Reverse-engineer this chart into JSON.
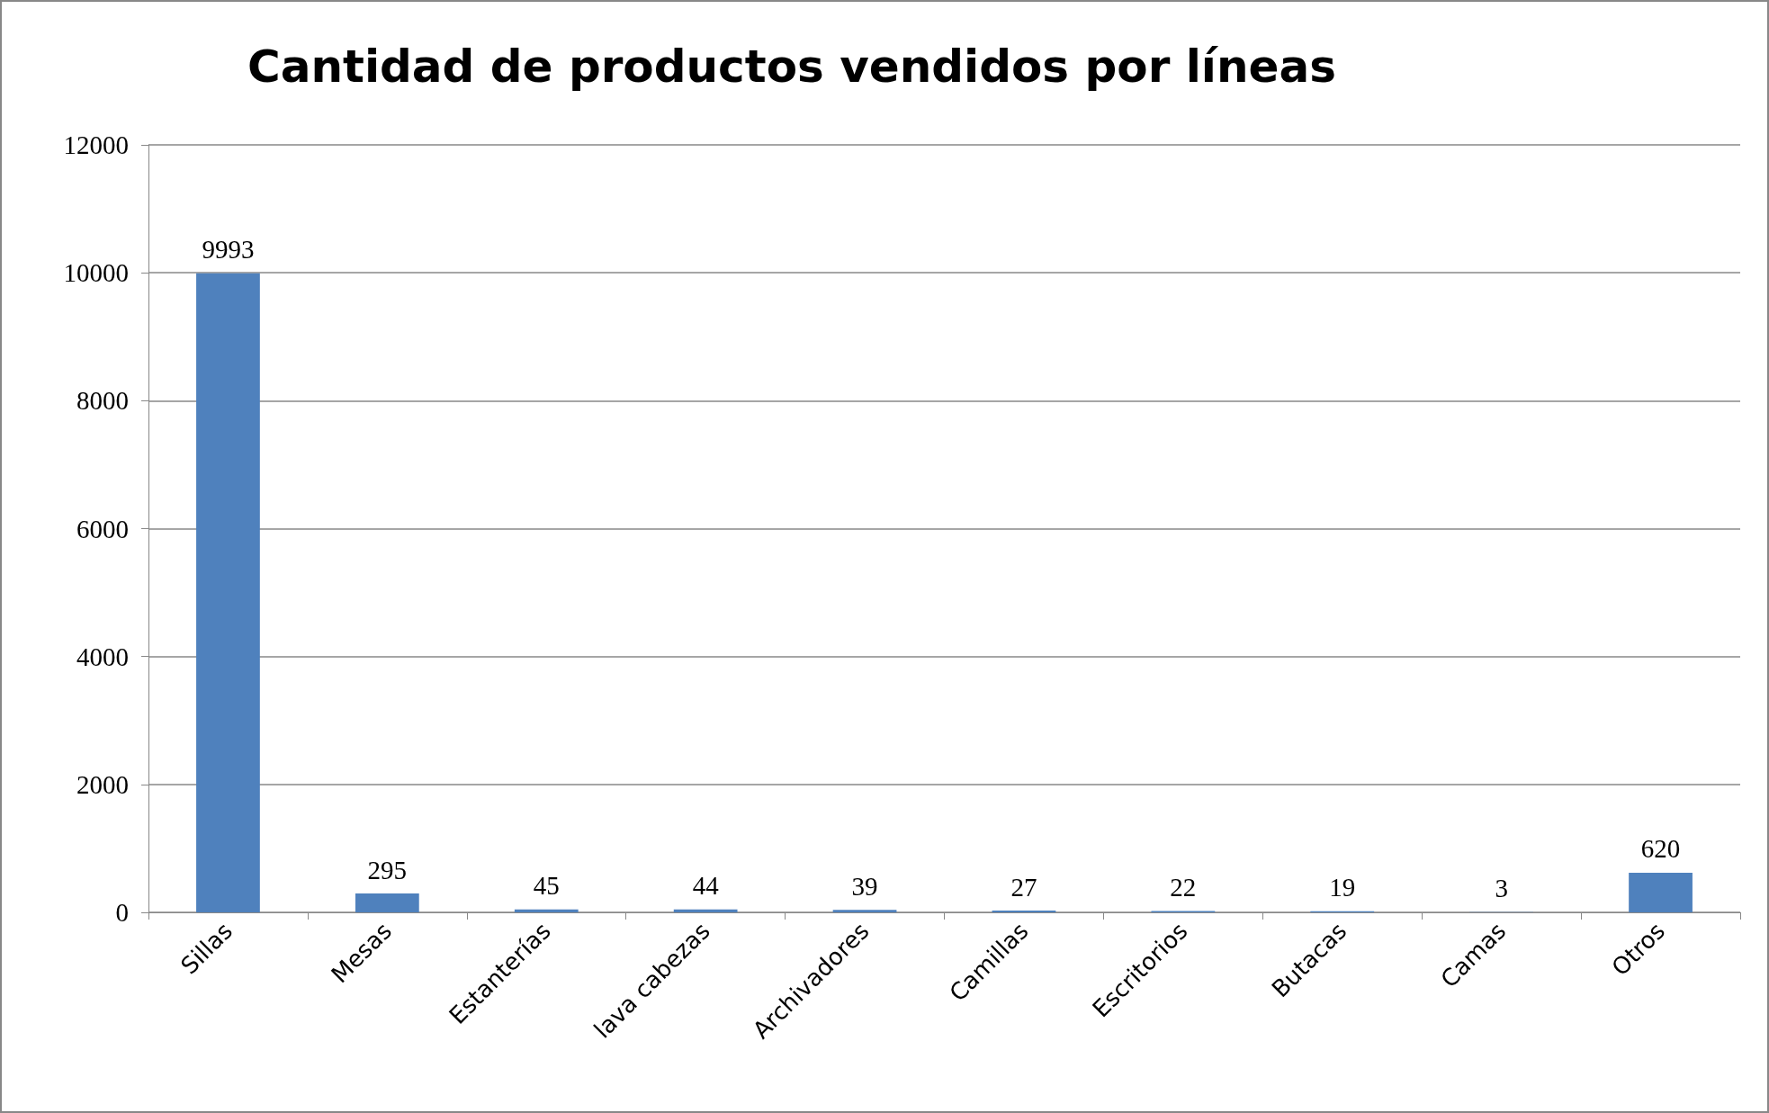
{
  "chart_data": {
    "type": "bar",
    "title": "Cantidad de productos vendidos por líneas",
    "categories": [
      "Sillas",
      "Mesas",
      "Estanterías",
      "lava cabezas",
      "Archivadores",
      "Camillas",
      "Escritorios",
      "Butacas",
      "Camas",
      "Otros"
    ],
    "values": [
      9993,
      295,
      45,
      44,
      39,
      27,
      22,
      19,
      3,
      620
    ],
    "color": "#4f81bd",
    "ylim": [
      0,
      12000
    ],
    "yticks": [
      0,
      2000,
      4000,
      6000,
      8000,
      10000,
      12000
    ],
    "grid": "y",
    "data_labels": true
  }
}
